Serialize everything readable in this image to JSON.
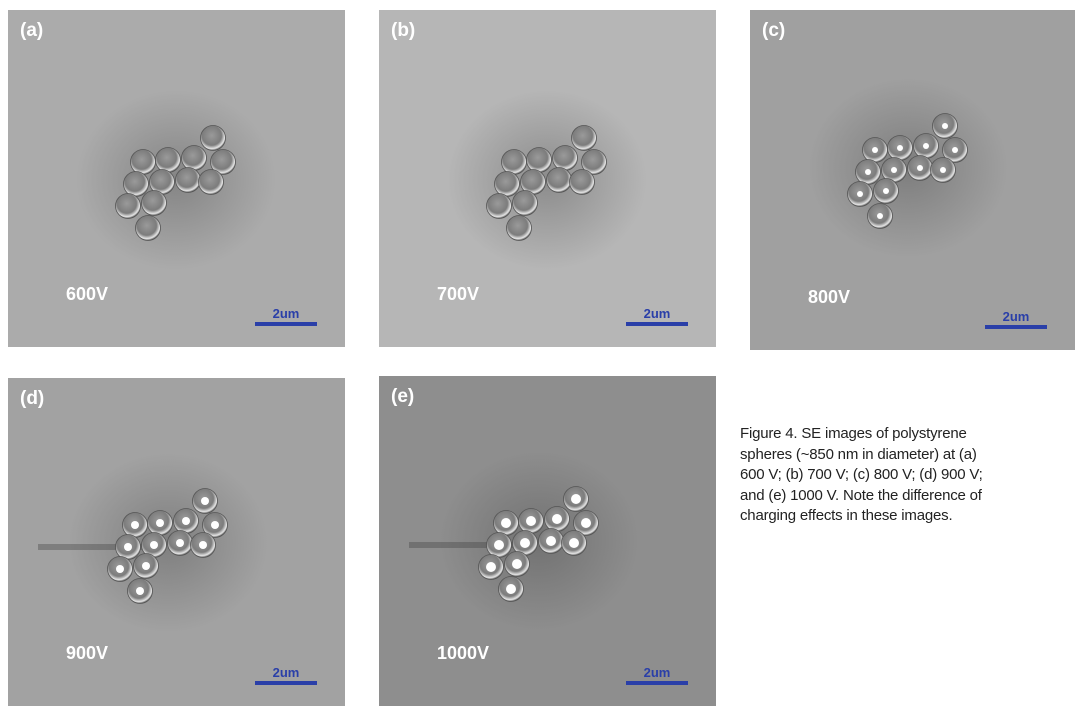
{
  "figure": {
    "panels": [
      {
        "tag": "(a)",
        "voltage": "600V",
        "scale": "2um"
      },
      {
        "tag": "(b)",
        "voltage": "700V",
        "scale": "2um"
      },
      {
        "tag": "(c)",
        "voltage": "800V",
        "scale": "2um"
      },
      {
        "tag": "(d)",
        "voltage": "900V",
        "scale": "2um"
      },
      {
        "tag": "(e)",
        "voltage": "1000V",
        "scale": "2um"
      }
    ]
  },
  "caption": {
    "lines": [
      "Figure 4.  SE images of polystyrene",
      "spheres (~850 nm in diameter) at (a)",
      "600 V; (b) 700 V; (c) 800 V; (d) 900 V;",
      "and (e) 1000 V. Note the difference of",
      "charging effects in these images."
    ]
  }
}
